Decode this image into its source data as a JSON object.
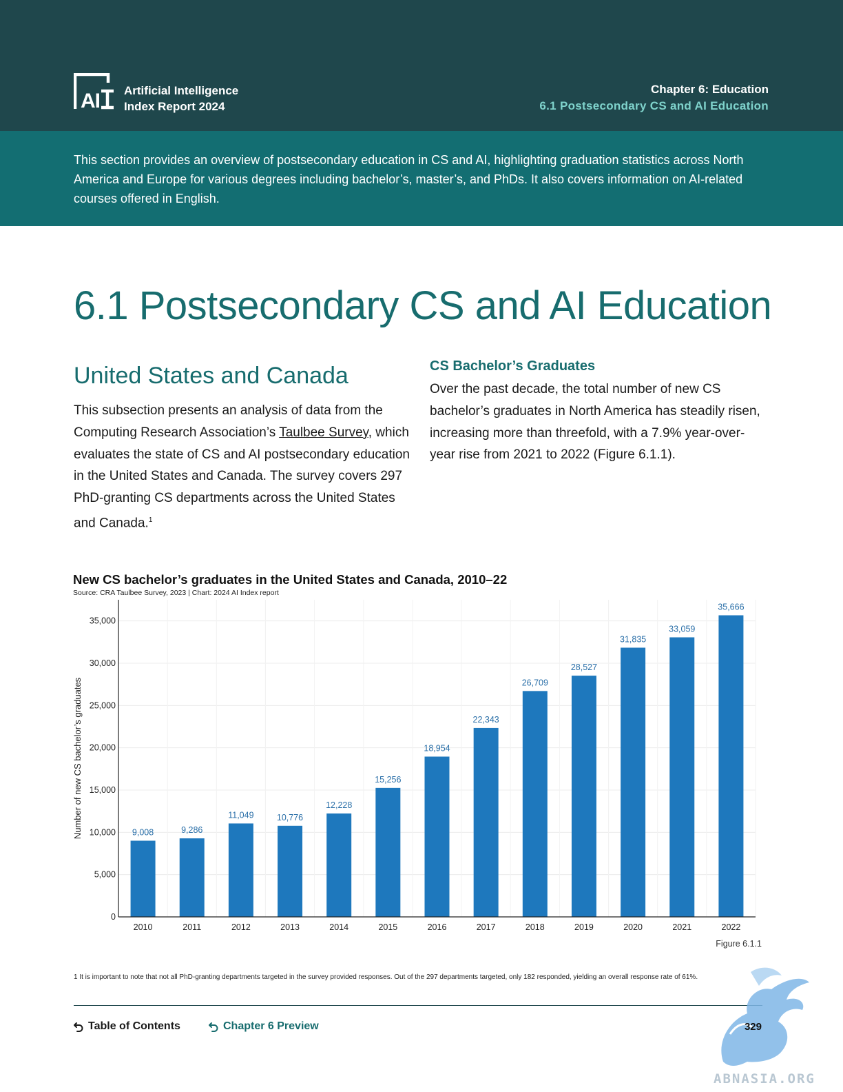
{
  "header": {
    "brand_line1": "Artificial Intelligence",
    "brand_line2": "Index Report 2024",
    "chapter": "Chapter 6: Education",
    "section": "6.1 Postsecondary CS and AI Education",
    "logo_icon": "ai-index-logo-icon"
  },
  "intro": "This section provides an overview of postsecondary education in CS and AI, highlighting graduation statistics across North America and Europe for various degrees including bachelor’s, master’s, and PhDs. It also covers information on AI-related courses offered in English.",
  "main": {
    "title": "6.1 Postsecondary CS and AI Education",
    "subheading": "United States and Canada",
    "left_para_before": "This subsection presents an analysis of data from the Computing Research Association’s ",
    "left_para_link": "Taulbee Survey",
    "left_para_after": ", which evaluates the state of CS and AI postsecondary education in the United States and Canada. The survey covers 297 PhD-granting CS departments across the United States and Canada.",
    "footnote_marker": "1",
    "right_heading": "CS Bachelor’s Graduates",
    "right_para": "Over the past decade, the total number of new CS bachelor’s graduates in North America has steadily risen, increasing more than threefold, with a 7.9% year-over-year rise from 2021 to 2022 (Figure 6.1.1)."
  },
  "chart_data": {
    "type": "bar",
    "title": "New CS bachelor’s graduates in the United States and Canada, 2010–22",
    "source": "Source: CRA Taulbee Survey, 2023 | Chart: 2024 AI Index report",
    "xlabel": "",
    "ylabel": "Number of new CS bachelor’s graduates",
    "categories": [
      "2010",
      "2011",
      "2012",
      "2013",
      "2014",
      "2015",
      "2016",
      "2017",
      "2018",
      "2019",
      "2020",
      "2021",
      "2022"
    ],
    "values": [
      9008,
      9286,
      11049,
      10776,
      12228,
      15256,
      18954,
      22343,
      26709,
      28527,
      31835,
      33059,
      35666
    ],
    "value_labels": [
      "9,008",
      "9,286",
      "11,049",
      "10,776",
      "12,228",
      "15,256",
      "18,954",
      "22,343",
      "26,709",
      "28,527",
      "31,835",
      "33,059",
      "35,666"
    ],
    "yticks": [
      0,
      5000,
      10000,
      15000,
      20000,
      25000,
      30000,
      35000
    ],
    "ytick_labels": [
      "0",
      "5,000",
      "10,000",
      "15,000",
      "20,000",
      "25,000",
      "30,000",
      "35,000"
    ],
    "ylim": [
      0,
      37500
    ],
    "grid": true,
    "bar_color": "#1e78bd",
    "label_color": "#2a6fa8",
    "figure_label": "Figure 6.1.1"
  },
  "footnote": "1 It is important to note that not all PhD-granting departments targeted in the survey provided responses. Out of the 297 departments targeted, only 182 responded, yielding an overall response rate of 61%.",
  "footer": {
    "toc_label": "Table of Contents",
    "toc_icon": "back-arrow-icon",
    "preview_label": "Chapter 6 Preview",
    "preview_icon": "back-arrow-icon",
    "page_number": "329"
  },
  "watermark": {
    "text": "ABNASIA.ORG",
    "icon": "griffin-logo-icon"
  },
  "colors": {
    "header_bg": "#1f474c",
    "intro_bg": "#136e72",
    "accent_teal": "#176c6e",
    "accent_light_teal": "#7fd3cc"
  }
}
